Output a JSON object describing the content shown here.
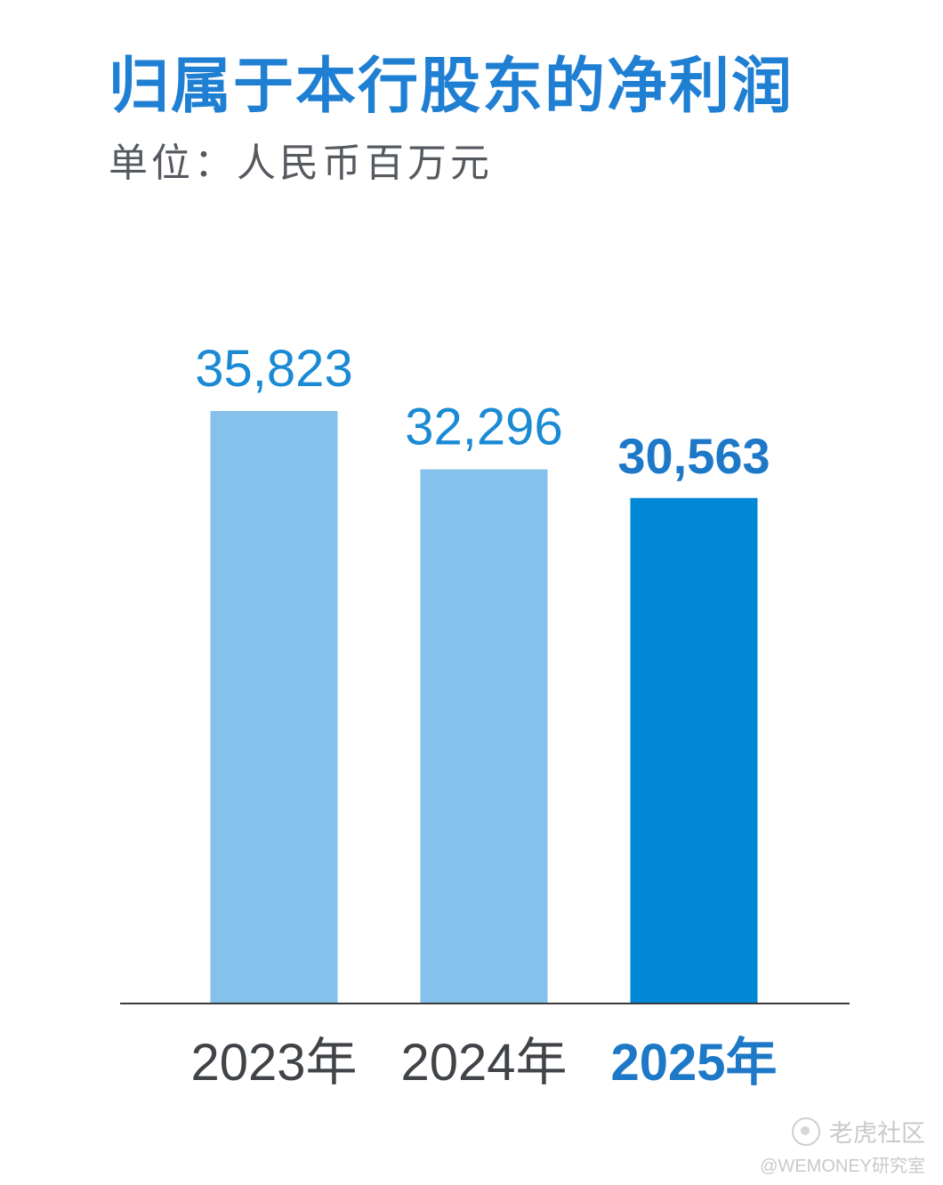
{
  "header": {
    "title": "归属于本行股东的净利润",
    "subtitle": "单位：人民币百万元"
  },
  "chart_data": {
    "type": "bar",
    "title": "归属于本行股东的净利润",
    "subtitle": "单位：人民币百万元",
    "categories": [
      "2023年",
      "2024年",
      "2025年"
    ],
    "values": [
      35823,
      32296,
      30563
    ],
    "value_labels": [
      "35,823",
      "32,296",
      "30,563"
    ],
    "highlight_index": 2,
    "colors": {
      "bar": "#85c1ea",
      "highlight_bar": "#0087d6",
      "value_text": "#1a8ad4",
      "highlight_text": "#1d78c8",
      "category_text": "#404347",
      "highlight_category_text": "#1d78c8",
      "baseline": "#3a3a3a"
    },
    "ylim": [
      0,
      35823
    ],
    "grid": false,
    "legend": "none"
  },
  "watermark": {
    "line1": "老虎社区",
    "line2": "@WEMONEY研究室",
    "icon": "tiger-community-logo-icon"
  }
}
